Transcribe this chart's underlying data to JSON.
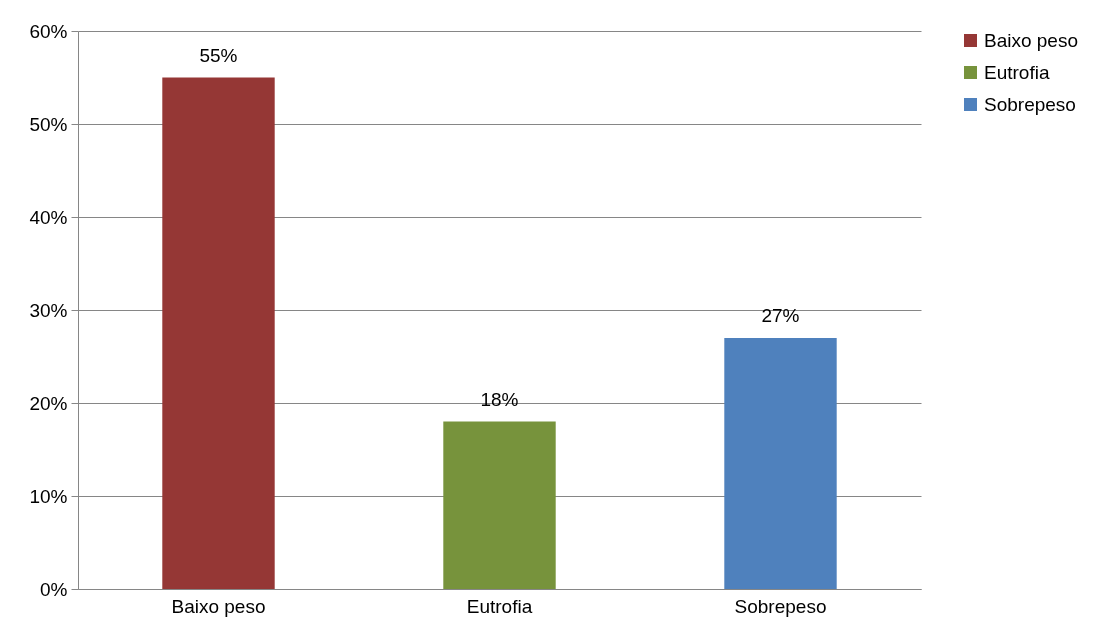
{
  "chart_data": {
    "type": "bar",
    "categories": [
      "Baixo peso",
      "Eutrofia",
      "Sobrepeso"
    ],
    "stacked": true,
    "series": [
      {
        "name": "Baixo peso",
        "color": "#953735",
        "values": [
          55,
          null,
          null
        ],
        "value_labels": [
          "55%",
          null,
          null
        ]
      },
      {
        "name": "Eutrofia",
        "color": "#77933c",
        "values": [
          null,
          18,
          null
        ],
        "value_labels": [
          null,
          "18%",
          null
        ]
      },
      {
        "name": "Sobrepeso",
        "color": "#4f81bd",
        "values": [
          null,
          null,
          27
        ],
        "value_labels": [
          null,
          null,
          "27%"
        ]
      }
    ],
    "ylim": [
      0,
      60
    ],
    "yticks": [
      {
        "value": 0,
        "label": "0%"
      },
      {
        "value": 10,
        "label": "10%"
      },
      {
        "value": 20,
        "label": "20%"
      },
      {
        "value": 30,
        "label": "30%"
      },
      {
        "value": 40,
        "label": "40%"
      },
      {
        "value": 50,
        "label": "50%"
      },
      {
        "value": 60,
        "label": "60%"
      }
    ],
    "grid": "y",
    "legend": "right"
  }
}
